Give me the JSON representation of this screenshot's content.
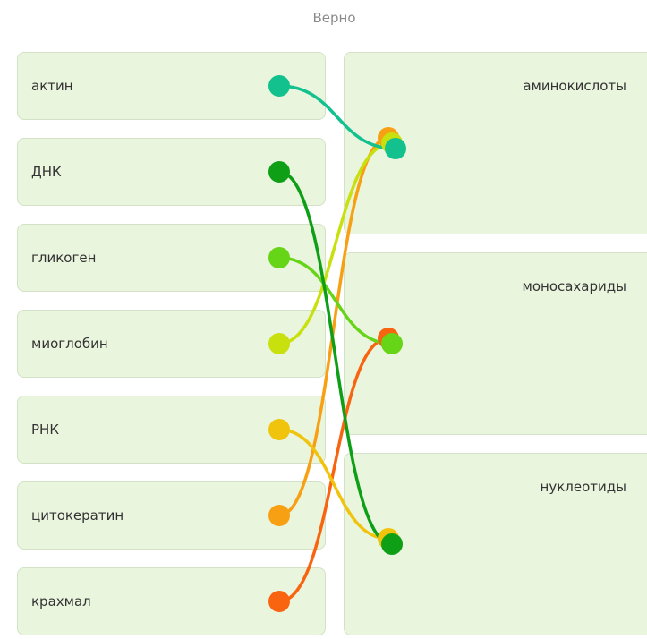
{
  "status_text": "Верно",
  "left_items": [
    {
      "label": "актин",
      "color": "#12c18e"
    },
    {
      "label": "ДНК",
      "color": "#0f9f17"
    },
    {
      "label": "гликоген",
      "color": "#66d417"
    },
    {
      "label": "миоглобин",
      "color": "#c8e00e"
    },
    {
      "label": "РНК",
      "color": "#f0c40c"
    },
    {
      "label": "цитокератин",
      "color": "#f8a014"
    },
    {
      "label": "крахмал",
      "color": "#f86410"
    }
  ],
  "right_items": [
    {
      "label": "аминокислоты"
    },
    {
      "label": "моносахариды"
    },
    {
      "label": "нуклеотиды"
    }
  ],
  "matches": [
    {
      "left": 5,
      "right": 0
    },
    {
      "left": 3,
      "right": 0
    },
    {
      "left": 0,
      "right": 0
    },
    {
      "left": 6,
      "right": 1
    },
    {
      "left": 2,
      "right": 1
    },
    {
      "left": 4,
      "right": 2
    },
    {
      "left": 1,
      "right": 2
    }
  ]
}
